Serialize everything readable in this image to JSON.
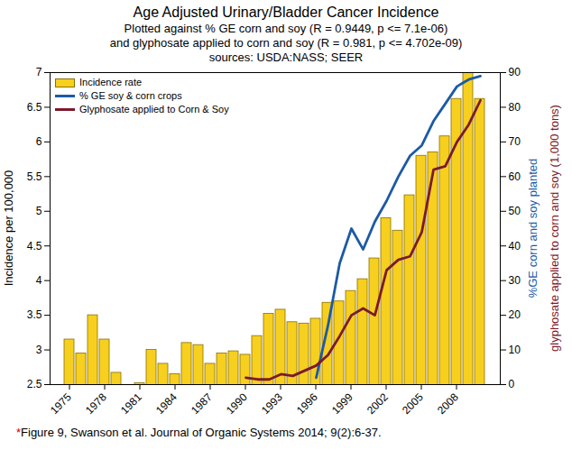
{
  "chart_data": {
    "type": "bar",
    "title": "Age Adjusted Urinary/Bladder Cancer Incidence",
    "subtitle": [
      "Plotted against % GE corn and soy (R = 0.9449, p <= 7.1e-06)",
      "and glyphosate applied to corn and soy (R = 0.981, p <= 4.702e-09)",
      "sources: USDA:NASS; SEER"
    ],
    "caption": "*Figure 9, Swanson et al. Journal of Organic Systems 2014; 9(2):6-37.",
    "y_label": "Incidence per 100,000",
    "y2_label": [
      "%GE corn and soy planted",
      "glyphosate applied to corn and soy (1,000 tons)"
    ],
    "x": [
      1975,
      1976,
      1977,
      1978,
      1979,
      1980,
      1981,
      1982,
      1983,
      1984,
      1985,
      1986,
      1987,
      1988,
      1989,
      1990,
      1991,
      1992,
      1993,
      1994,
      1995,
      1996,
      1997,
      1998,
      1999,
      2000,
      2001,
      2002,
      2003,
      2004,
      2005,
      2006,
      2007,
      2008,
      2009,
      2010
    ],
    "xticks": [
      1975,
      1978,
      1981,
      1984,
      1987,
      1990,
      1993,
      1996,
      1999,
      2002,
      2005,
      2008
    ],
    "ylim": [
      2.5,
      7
    ],
    "yticks": [
      2.5,
      3,
      3.5,
      4,
      4.5,
      5,
      5.5,
      6,
      6.5,
      7
    ],
    "y2lim": [
      0,
      90
    ],
    "y2ticks": [
      0,
      10,
      20,
      30,
      40,
      50,
      60,
      70,
      80,
      90
    ],
    "grid": false,
    "legend": "top-left",
    "series": [
      {
        "name": "Incidence rate",
        "type": "bar",
        "color": "#f7cf1e",
        "values": [
          3.15,
          2.95,
          3.5,
          3.15,
          2.67,
          null,
          2.52,
          3.0,
          2.8,
          2.65,
          3.1,
          3.07,
          2.8,
          2.95,
          2.98,
          2.93,
          3.2,
          3.52,
          3.58,
          3.4,
          3.38,
          3.45,
          3.68,
          3.7,
          3.85,
          4.02,
          4.32,
          4.9,
          4.72,
          5.23,
          5.8,
          5.85,
          6.08,
          6.62,
          7.0,
          6.62
        ]
      },
      {
        "name": "% GE soy & corn crops",
        "type": "line",
        "axis": "y2",
        "color": "#1c5aa6",
        "values": [
          null,
          null,
          null,
          null,
          null,
          null,
          null,
          null,
          null,
          null,
          null,
          null,
          null,
          null,
          null,
          null,
          null,
          null,
          null,
          null,
          null,
          2,
          17,
          35,
          45,
          39,
          47,
          53,
          60,
          66,
          69,
          76,
          81,
          86,
          88,
          89
        ]
      },
      {
        "name": "Glyphosate applied to Corn & Soy",
        "type": "line",
        "axis": "y2",
        "color": "#7b1a2b",
        "values": [
          null,
          null,
          null,
          null,
          null,
          null,
          null,
          null,
          null,
          null,
          null,
          null,
          null,
          null,
          null,
          2,
          1.5,
          1.5,
          3,
          2.5,
          4,
          5.5,
          8.5,
          14,
          20,
          22,
          20,
          33,
          36,
          37,
          44,
          62,
          63,
          70,
          75,
          82
        ]
      }
    ]
  }
}
